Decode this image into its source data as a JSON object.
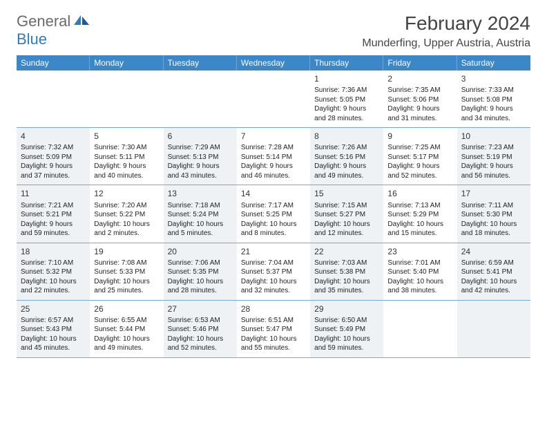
{
  "logo": {
    "general": "General",
    "blue": "Blue"
  },
  "title": "February 2024",
  "location": "Munderfing, Upper Austria, Austria",
  "colors": {
    "header_bg": "#3c87c7",
    "header_text": "#ffffff",
    "row_divider": "#78a9d4",
    "shaded_cell": "#eef2f5",
    "body_text": "#222222",
    "logo_gray": "#6a6a6a",
    "logo_blue": "#2f7bbf"
  },
  "day_names": [
    "Sunday",
    "Monday",
    "Tuesday",
    "Wednesday",
    "Thursday",
    "Friday",
    "Saturday"
  ],
  "weeks": [
    [
      {
        "num": "",
        "empty": true
      },
      {
        "num": "",
        "empty": true
      },
      {
        "num": "",
        "empty": true
      },
      {
        "num": "",
        "empty": true
      },
      {
        "num": "1",
        "sunrise": "Sunrise: 7:36 AM",
        "sunset": "Sunset: 5:05 PM",
        "daylight1": "Daylight: 9 hours",
        "daylight2": "and 28 minutes."
      },
      {
        "num": "2",
        "sunrise": "Sunrise: 7:35 AM",
        "sunset": "Sunset: 5:06 PM",
        "daylight1": "Daylight: 9 hours",
        "daylight2": "and 31 minutes."
      },
      {
        "num": "3",
        "sunrise": "Sunrise: 7:33 AM",
        "sunset": "Sunset: 5:08 PM",
        "daylight1": "Daylight: 9 hours",
        "daylight2": "and 34 minutes."
      }
    ],
    [
      {
        "num": "4",
        "shaded": true,
        "sunrise": "Sunrise: 7:32 AM",
        "sunset": "Sunset: 5:09 PM",
        "daylight1": "Daylight: 9 hours",
        "daylight2": "and 37 minutes."
      },
      {
        "num": "5",
        "sunrise": "Sunrise: 7:30 AM",
        "sunset": "Sunset: 5:11 PM",
        "daylight1": "Daylight: 9 hours",
        "daylight2": "and 40 minutes."
      },
      {
        "num": "6",
        "shaded": true,
        "sunrise": "Sunrise: 7:29 AM",
        "sunset": "Sunset: 5:13 PM",
        "daylight1": "Daylight: 9 hours",
        "daylight2": "and 43 minutes."
      },
      {
        "num": "7",
        "sunrise": "Sunrise: 7:28 AM",
        "sunset": "Sunset: 5:14 PM",
        "daylight1": "Daylight: 9 hours",
        "daylight2": "and 46 minutes."
      },
      {
        "num": "8",
        "shaded": true,
        "sunrise": "Sunrise: 7:26 AM",
        "sunset": "Sunset: 5:16 PM",
        "daylight1": "Daylight: 9 hours",
        "daylight2": "and 49 minutes."
      },
      {
        "num": "9",
        "sunrise": "Sunrise: 7:25 AM",
        "sunset": "Sunset: 5:17 PM",
        "daylight1": "Daylight: 9 hours",
        "daylight2": "and 52 minutes."
      },
      {
        "num": "10",
        "shaded": true,
        "sunrise": "Sunrise: 7:23 AM",
        "sunset": "Sunset: 5:19 PM",
        "daylight1": "Daylight: 9 hours",
        "daylight2": "and 56 minutes."
      }
    ],
    [
      {
        "num": "11",
        "shaded": true,
        "sunrise": "Sunrise: 7:21 AM",
        "sunset": "Sunset: 5:21 PM",
        "daylight1": "Daylight: 9 hours",
        "daylight2": "and 59 minutes."
      },
      {
        "num": "12",
        "sunrise": "Sunrise: 7:20 AM",
        "sunset": "Sunset: 5:22 PM",
        "daylight1": "Daylight: 10 hours",
        "daylight2": "and 2 minutes."
      },
      {
        "num": "13",
        "shaded": true,
        "sunrise": "Sunrise: 7:18 AM",
        "sunset": "Sunset: 5:24 PM",
        "daylight1": "Daylight: 10 hours",
        "daylight2": "and 5 minutes."
      },
      {
        "num": "14",
        "sunrise": "Sunrise: 7:17 AM",
        "sunset": "Sunset: 5:25 PM",
        "daylight1": "Daylight: 10 hours",
        "daylight2": "and 8 minutes."
      },
      {
        "num": "15",
        "shaded": true,
        "sunrise": "Sunrise: 7:15 AM",
        "sunset": "Sunset: 5:27 PM",
        "daylight1": "Daylight: 10 hours",
        "daylight2": "and 12 minutes."
      },
      {
        "num": "16",
        "sunrise": "Sunrise: 7:13 AM",
        "sunset": "Sunset: 5:29 PM",
        "daylight1": "Daylight: 10 hours",
        "daylight2": "and 15 minutes."
      },
      {
        "num": "17",
        "shaded": true,
        "sunrise": "Sunrise: 7:11 AM",
        "sunset": "Sunset: 5:30 PM",
        "daylight1": "Daylight: 10 hours",
        "daylight2": "and 18 minutes."
      }
    ],
    [
      {
        "num": "18",
        "shaded": true,
        "sunrise": "Sunrise: 7:10 AM",
        "sunset": "Sunset: 5:32 PM",
        "daylight1": "Daylight: 10 hours",
        "daylight2": "and 22 minutes."
      },
      {
        "num": "19",
        "sunrise": "Sunrise: 7:08 AM",
        "sunset": "Sunset: 5:33 PM",
        "daylight1": "Daylight: 10 hours",
        "daylight2": "and 25 minutes."
      },
      {
        "num": "20",
        "shaded": true,
        "sunrise": "Sunrise: 7:06 AM",
        "sunset": "Sunset: 5:35 PM",
        "daylight1": "Daylight: 10 hours",
        "daylight2": "and 28 minutes."
      },
      {
        "num": "21",
        "sunrise": "Sunrise: 7:04 AM",
        "sunset": "Sunset: 5:37 PM",
        "daylight1": "Daylight: 10 hours",
        "daylight2": "and 32 minutes."
      },
      {
        "num": "22",
        "shaded": true,
        "sunrise": "Sunrise: 7:03 AM",
        "sunset": "Sunset: 5:38 PM",
        "daylight1": "Daylight: 10 hours",
        "daylight2": "and 35 minutes."
      },
      {
        "num": "23",
        "sunrise": "Sunrise: 7:01 AM",
        "sunset": "Sunset: 5:40 PM",
        "daylight1": "Daylight: 10 hours",
        "daylight2": "and 38 minutes."
      },
      {
        "num": "24",
        "shaded": true,
        "sunrise": "Sunrise: 6:59 AM",
        "sunset": "Sunset: 5:41 PM",
        "daylight1": "Daylight: 10 hours",
        "daylight2": "and 42 minutes."
      }
    ],
    [
      {
        "num": "25",
        "shaded": true,
        "sunrise": "Sunrise: 6:57 AM",
        "sunset": "Sunset: 5:43 PM",
        "daylight1": "Daylight: 10 hours",
        "daylight2": "and 45 minutes."
      },
      {
        "num": "26",
        "sunrise": "Sunrise: 6:55 AM",
        "sunset": "Sunset: 5:44 PM",
        "daylight1": "Daylight: 10 hours",
        "daylight2": "and 49 minutes."
      },
      {
        "num": "27",
        "shaded": true,
        "sunrise": "Sunrise: 6:53 AM",
        "sunset": "Sunset: 5:46 PM",
        "daylight1": "Daylight: 10 hours",
        "daylight2": "and 52 minutes."
      },
      {
        "num": "28",
        "sunrise": "Sunrise: 6:51 AM",
        "sunset": "Sunset: 5:47 PM",
        "daylight1": "Daylight: 10 hours",
        "daylight2": "and 55 minutes."
      },
      {
        "num": "29",
        "shaded": true,
        "sunrise": "Sunrise: 6:50 AM",
        "sunset": "Sunset: 5:49 PM",
        "daylight1": "Daylight: 10 hours",
        "daylight2": "and 59 minutes."
      },
      {
        "num": "",
        "empty": true
      },
      {
        "num": "",
        "empty": true,
        "shaded": true
      }
    ]
  ]
}
